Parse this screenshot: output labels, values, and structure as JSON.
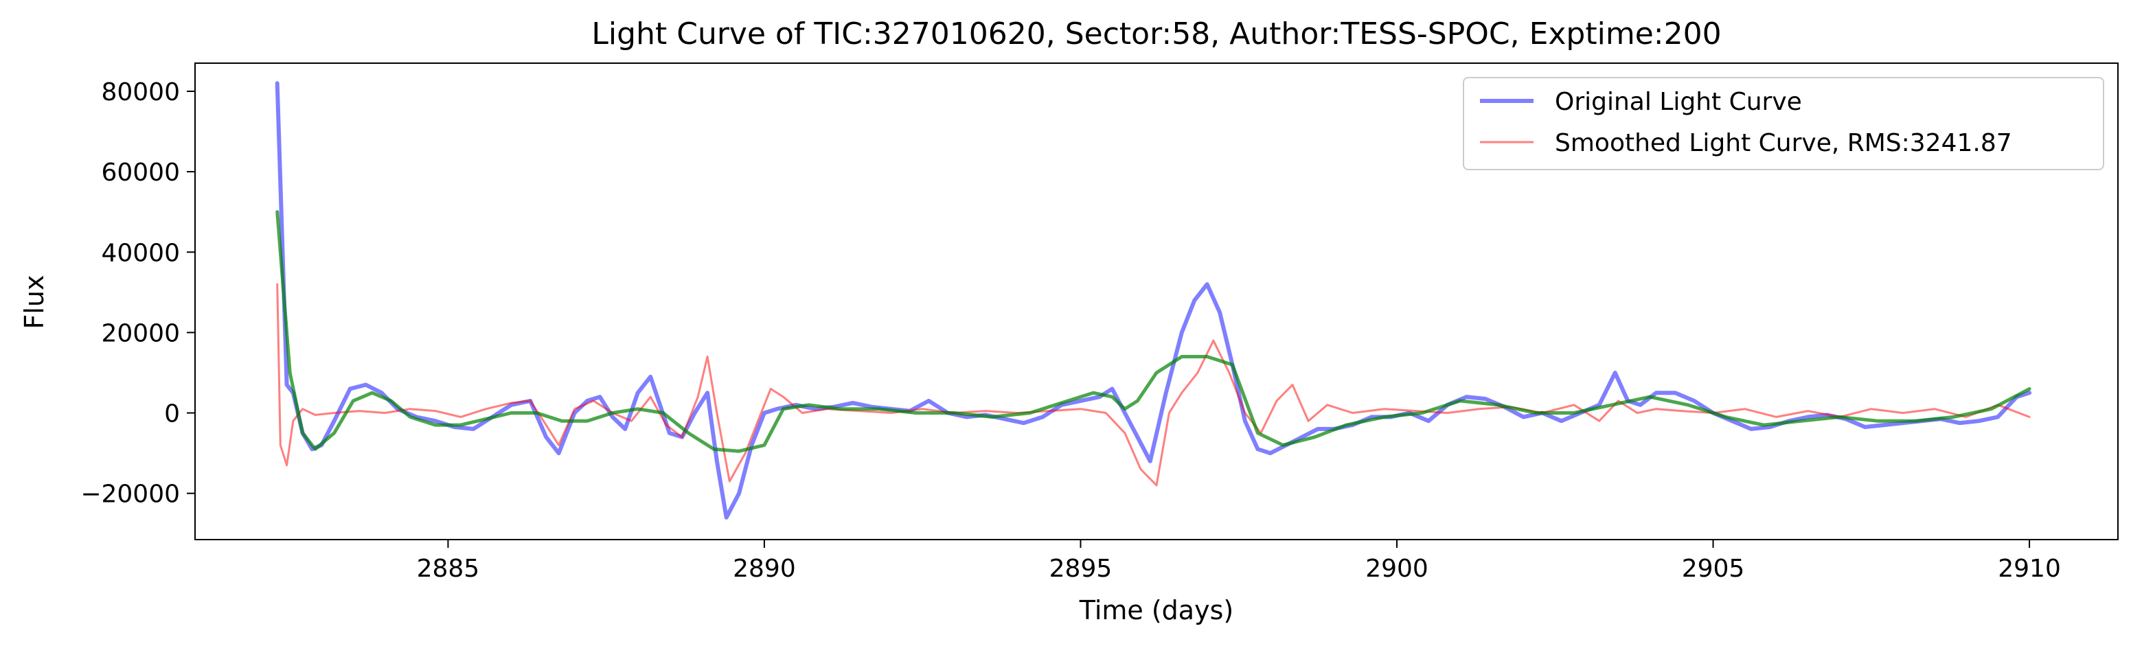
{
  "chart_data": {
    "type": "line",
    "title": "Light Curve of TIC:327010620, Sector:58, Author:TESS-SPOC, Exptime:200",
    "xlabel": "Time (days)",
    "ylabel": "Flux",
    "xlim": [
      2881.0,
      2911.4
    ],
    "ylim": [
      -31500,
      87000
    ],
    "xticks": [
      2885,
      2890,
      2895,
      2900,
      2905,
      2910
    ],
    "yticks": [
      -20000,
      0,
      20000,
      40000,
      60000,
      80000
    ],
    "ytick_labels": [
      "−20000",
      "0",
      "20000",
      "40000",
      "60000",
      "80000"
    ],
    "grid": false,
    "legend_position": "top-right",
    "colors": {
      "original": "#0000ff",
      "smoothed": "#ff0000",
      "trend": "#008000"
    },
    "series": [
      {
        "name": "Original Light Curve",
        "color": "#0000ff",
        "x": [
          2882.3,
          2882.45,
          2882.55,
          2882.7,
          2882.85,
          2883.0,
          2883.2,
          2883.45,
          2883.7,
          2883.95,
          2884.2,
          2884.5,
          2884.8,
          2885.1,
          2885.4,
          2885.7,
          2886.0,
          2886.3,
          2886.55,
          2886.75,
          2887.0,
          2887.2,
          2887.4,
          2887.6,
          2887.8,
          2888.0,
          2888.2,
          2888.35,
          2888.5,
          2888.7,
          2888.9,
          2889.1,
          2889.25,
          2889.4,
          2889.6,
          2889.8,
          2890.0,
          2890.2,
          2890.5,
          2890.8,
          2891.1,
          2891.4,
          2891.7,
          2892.0,
          2892.3,
          2892.6,
          2892.9,
          2893.2,
          2893.5,
          2893.8,
          2894.1,
          2894.4,
          2894.7,
          2895.0,
          2895.3,
          2895.5,
          2895.7,
          2895.9,
          2896.1,
          2896.35,
          2896.6,
          2896.8,
          2897.0,
          2897.2,
          2897.4,
          2897.6,
          2897.8,
          2898.0,
          2898.25,
          2898.5,
          2898.75,
          2899.0,
          2899.3,
          2899.6,
          2899.9,
          2900.2,
          2900.5,
          2900.8,
          2901.1,
          2901.4,
          2901.7,
          2902.0,
          2902.3,
          2902.6,
          2902.9,
          2903.2,
          2903.45,
          2903.65,
          2903.85,
          2904.1,
          2904.4,
          2904.7,
          2905.0,
          2905.3,
          2905.6,
          2905.9,
          2906.2,
          2906.5,
          2906.8,
          2907.1,
          2907.4,
          2907.7,
          2908.0,
          2908.3,
          2908.6,
          2908.9,
          2909.2,
          2909.5,
          2909.8,
          2910.0
        ],
        "values": [
          82000,
          7000,
          5000,
          -5000,
          -9000,
          -8000,
          -2000,
          6000,
          7000,
          5000,
          1000,
          -1000,
          -2000,
          -3500,
          -4000,
          -1000,
          2000,
          3000,
          -6000,
          -10000,
          0,
          3000,
          4000,
          -1000,
          -4000,
          5000,
          9000,
          2000,
          -5000,
          -6000,
          0,
          5000,
          -12000,
          -26000,
          -20000,
          -8000,
          0,
          1000,
          2000,
          1000,
          1500,
          2500,
          1500,
          1000,
          500,
          3000,
          0,
          -1000,
          -500,
          -1500,
          -2500,
          -1000,
          2000,
          3000,
          4000,
          6000,
          0,
          -6000,
          -12000,
          5000,
          20000,
          28000,
          32000,
          25000,
          12000,
          -2000,
          -9000,
          -10000,
          -8000,
          -6000,
          -4000,
          -4000,
          -3000,
          -1000,
          -1000,
          0,
          -2000,
          2000,
          4000,
          3500,
          1500,
          -1000,
          0,
          -2000,
          0,
          2000,
          10000,
          3000,
          2000,
          5000,
          5000,
          3000,
          0,
          -2000,
          -4000,
          -3500,
          -2000,
          -1000,
          -500,
          -1500,
          -3500,
          -3000,
          -2500,
          -2000,
          -1500,
          -2500,
          -2000,
          -1000,
          4000,
          5000
        ]
      },
      {
        "name": "Smoothed Light Curve, RMS:3241.87",
        "color": "#ff0000",
        "x": [
          2882.3,
          2882.35,
          2882.45,
          2882.55,
          2882.7,
          2882.9,
          2883.2,
          2883.6,
          2884.0,
          2884.4,
          2884.8,
          2885.2,
          2885.6,
          2886.0,
          2886.3,
          2886.55,
          2886.75,
          2887.0,
          2887.3,
          2887.6,
          2887.9,
          2888.2,
          2888.45,
          2888.7,
          2888.95,
          2889.1,
          2889.25,
          2889.45,
          2889.7,
          2889.95,
          2890.1,
          2890.3,
          2890.6,
          2891.0,
          2891.5,
          2892.0,
          2892.5,
          2893.0,
          2893.5,
          2894.0,
          2894.5,
          2895.0,
          2895.4,
          2895.7,
          2895.95,
          2896.2,
          2896.4,
          2896.6,
          2896.85,
          2897.1,
          2897.35,
          2897.6,
          2897.85,
          2898.1,
          2898.35,
          2898.6,
          2898.9,
          2899.3,
          2899.8,
          2900.3,
          2900.8,
          2901.3,
          2901.8,
          2902.3,
          2902.8,
          2903.2,
          2903.5,
          2903.8,
          2904.1,
          2904.5,
          2905.0,
          2905.5,
          2906.0,
          2906.5,
          2907.0,
          2907.5,
          2908.0,
          2908.5,
          2909.0,
          2909.5,
          2910.0
        ],
        "values": [
          32000,
          -8000,
          -13000,
          -2000,
          1000,
          -500,
          0,
          500,
          0,
          1000,
          500,
          -1000,
          1000,
          2500,
          3000,
          -3000,
          -8000,
          1000,
          3000,
          0,
          -2000,
          4000,
          -3000,
          -6000,
          4000,
          14000,
          0,
          -17000,
          -10000,
          0,
          6000,
          4000,
          0,
          1000,
          500,
          0,
          1000,
          0,
          500,
          0,
          500,
          1000,
          0,
          -5000,
          -14000,
          -18000,
          0,
          5000,
          10000,
          18000,
          10000,
          0,
          -5000,
          3000,
          7000,
          -2000,
          2000,
          0,
          1000,
          500,
          0,
          1000,
          1500,
          0,
          2000,
          -2000,
          3000,
          0,
          1000,
          500,
          0,
          1000,
          -1000,
          500,
          -1000,
          1000,
          0,
          1000,
          -1000,
          2000,
          -1000
        ]
      },
      {
        "name": "",
        "color": "#008000",
        "x": [
          2882.3,
          2882.5,
          2882.7,
          2882.9,
          2883.2,
          2883.5,
          2883.8,
          2884.1,
          2884.4,
          2884.8,
          2885.2,
          2885.6,
          2886.0,
          2886.4,
          2886.8,
          2887.2,
          2887.6,
          2888.0,
          2888.4,
          2888.8,
          2889.2,
          2889.6,
          2890.0,
          2890.3,
          2890.7,
          2891.2,
          2891.8,
          2892.4,
          2893.0,
          2893.6,
          2894.2,
          2894.8,
          2895.2,
          2895.5,
          2895.7,
          2895.9,
          2896.2,
          2896.6,
          2897.0,
          2897.4,
          2897.8,
          2898.2,
          2898.7,
          2899.2,
          2899.8,
          2900.4,
          2901.0,
          2901.6,
          2902.2,
          2902.8,
          2903.4,
          2904.0,
          2904.6,
          2905.2,
          2905.8,
          2906.4,
          2907.0,
          2907.6,
          2908.2,
          2908.8,
          2909.4,
          2910.0
        ],
        "values": [
          50000,
          10000,
          -5000,
          -9000,
          -5000,
          3000,
          5000,
          3000,
          -1000,
          -3000,
          -3000,
          -1500,
          0,
          0,
          -2000,
          -2000,
          0,
          1000,
          0,
          -5000,
          -9000,
          -9500,
          -8000,
          1000,
          2000,
          1000,
          1000,
          0,
          0,
          -1000,
          0,
          3000,
          5000,
          4000,
          1000,
          3000,
          10000,
          14000,
          14000,
          12000,
          -5000,
          -8000,
          -6000,
          -3000,
          -1000,
          0,
          3000,
          2000,
          0,
          0,
          2000,
          4000,
          2000,
          -1000,
          -3000,
          -2000,
          -1000,
          -2000,
          -2000,
          -1000,
          1000,
          6000
        ]
      }
    ]
  }
}
